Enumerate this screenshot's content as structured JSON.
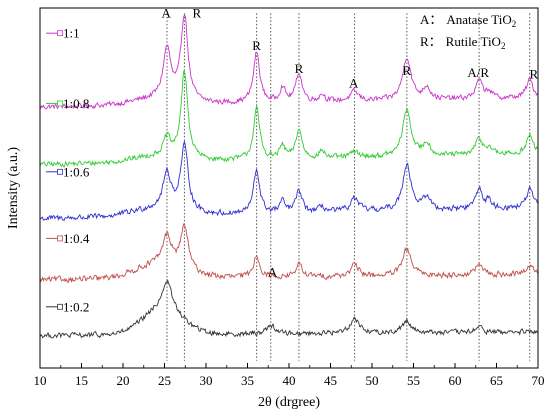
{
  "chart_data": {
    "type": "line",
    "title": "",
    "xlabel": "2θ (drgree)",
    "ylabel": "Intensity (a.u.)",
    "xlim": [
      10,
      70
    ],
    "x_ticks": [
      10,
      15,
      20,
      25,
      30,
      35,
      40,
      45,
      50,
      55,
      60,
      65,
      70
    ],
    "y_ticks_shown": false,
    "legend_position": "left",
    "phase_key": [
      {
        "symbol": "A：",
        "name": "Anatase TiO",
        "sub": "2"
      },
      {
        "symbol": "R：",
        "name": "Rutile TiO",
        "sub": "2"
      }
    ],
    "reference_lines": [
      {
        "x": 25.3,
        "phase": "A"
      },
      {
        "x": 27.4,
        "phase": "R"
      },
      {
        "x": 36.1,
        "phase": "R"
      },
      {
        "x": 37.8,
        "phase": "A"
      },
      {
        "x": 41.2,
        "phase": "R"
      },
      {
        "x": 47.9,
        "phase": "A"
      },
      {
        "x": 54.2,
        "phase": "R"
      },
      {
        "x": 62.9,
        "phase": "A/R"
      },
      {
        "x": 69.0,
        "phase": "R"
      }
    ],
    "peak_labels": [
      {
        "x": 25.2,
        "level": 0.985,
        "text": "A"
      },
      {
        "x": 28.9,
        "level": 0.985,
        "text": "R"
      },
      {
        "x": 36.1,
        "level": 0.895,
        "text": "R"
      },
      {
        "x": 41.2,
        "level": 0.83,
        "text": "R"
      },
      {
        "x": 47.8,
        "level": 0.79,
        "text": "A"
      },
      {
        "x": 54.2,
        "level": 0.825,
        "text": "R"
      },
      {
        "x": 62.8,
        "level": 0.82,
        "text": "A/R"
      },
      {
        "x": 69.5,
        "level": 0.815,
        "text": "R"
      },
      {
        "x": 38.0,
        "level": 0.265,
        "text": "A"
      }
    ],
    "series": [
      {
        "name": "1:1",
        "color": "#cc33cc",
        "baseline": 0.725,
        "tail_rise": 0.025,
        "hump": {
          "center": 24.0,
          "width": 4.0,
          "height": 0.015
        },
        "noise": 0.01,
        "label_level": 0.93,
        "peaks": [
          {
            "x": 25.3,
            "h": 0.14,
            "w": 0.55
          },
          {
            "x": 27.4,
            "h": 0.24,
            "w": 0.5
          },
          {
            "x": 36.1,
            "h": 0.14,
            "w": 0.45
          },
          {
            "x": 39.2,
            "h": 0.04,
            "w": 0.4
          },
          {
            "x": 41.2,
            "h": 0.08,
            "w": 0.45
          },
          {
            "x": 44.0,
            "h": 0.02,
            "w": 0.4
          },
          {
            "x": 47.9,
            "h": 0.025,
            "w": 0.6
          },
          {
            "x": 54.2,
            "h": 0.12,
            "w": 0.6
          },
          {
            "x": 56.6,
            "h": 0.035,
            "w": 0.5
          },
          {
            "x": 62.9,
            "h": 0.05,
            "w": 0.5
          },
          {
            "x": 64.1,
            "h": 0.02,
            "w": 0.4
          },
          {
            "x": 69.0,
            "h": 0.05,
            "w": 0.5
          }
        ]
      },
      {
        "name": "1:0.8",
        "color": "#33cc33",
        "baseline": 0.565,
        "tail_rise": 0.03,
        "hump": {
          "center": 24.0,
          "width": 4.0,
          "height": 0.015
        },
        "noise": 0.01,
        "label_level": 0.735,
        "peaks": [
          {
            "x": 25.3,
            "h": 0.05,
            "w": 0.5
          },
          {
            "x": 27.4,
            "h": 0.24,
            "w": 0.5
          },
          {
            "x": 36.1,
            "h": 0.14,
            "w": 0.45
          },
          {
            "x": 39.2,
            "h": 0.035,
            "w": 0.4
          },
          {
            "x": 41.2,
            "h": 0.08,
            "w": 0.45
          },
          {
            "x": 44.0,
            "h": 0.02,
            "w": 0.4
          },
          {
            "x": 47.9,
            "h": 0.015,
            "w": 0.6
          },
          {
            "x": 54.2,
            "h": 0.13,
            "w": 0.6
          },
          {
            "x": 56.6,
            "h": 0.035,
            "w": 0.5
          },
          {
            "x": 62.9,
            "h": 0.045,
            "w": 0.5
          },
          {
            "x": 64.1,
            "h": 0.02,
            "w": 0.4
          },
          {
            "x": 69.0,
            "h": 0.05,
            "w": 0.5
          }
        ]
      },
      {
        "name": "1:0.6",
        "color": "#2f2fd0",
        "baseline": 0.415,
        "tail_rise": 0.03,
        "hump": {
          "center": 24.0,
          "width": 4.0,
          "height": 0.02
        },
        "noise": 0.011,
        "label_level": 0.545,
        "peaks": [
          {
            "x": 25.3,
            "h": 0.1,
            "w": 0.55
          },
          {
            "x": 27.4,
            "h": 0.18,
            "w": 0.55
          },
          {
            "x": 36.1,
            "h": 0.12,
            "w": 0.45
          },
          {
            "x": 39.2,
            "h": 0.03,
            "w": 0.4
          },
          {
            "x": 41.2,
            "h": 0.06,
            "w": 0.45
          },
          {
            "x": 44.0,
            "h": 0.015,
            "w": 0.4
          },
          {
            "x": 47.9,
            "h": 0.035,
            "w": 0.6
          },
          {
            "x": 54.2,
            "h": 0.13,
            "w": 0.6
          },
          {
            "x": 56.6,
            "h": 0.035,
            "w": 0.5
          },
          {
            "x": 62.9,
            "h": 0.055,
            "w": 0.5
          },
          {
            "x": 64.1,
            "h": 0.02,
            "w": 0.4
          },
          {
            "x": 69.0,
            "h": 0.05,
            "w": 0.5
          }
        ]
      },
      {
        "name": "1:0.4",
        "color": "#c0504d",
        "baseline": 0.245,
        "tail_rise": 0.015,
        "hump": {
          "center": 24.5,
          "width": 4.0,
          "height": 0.04
        },
        "noise": 0.011,
        "label_level": 0.36,
        "peaks": [
          {
            "x": 25.3,
            "h": 0.08,
            "w": 0.6
          },
          {
            "x": 27.4,
            "h": 0.12,
            "w": 0.55
          },
          {
            "x": 36.1,
            "h": 0.06,
            "w": 0.45
          },
          {
            "x": 41.2,
            "h": 0.035,
            "w": 0.45
          },
          {
            "x": 47.9,
            "h": 0.03,
            "w": 0.6
          },
          {
            "x": 54.2,
            "h": 0.075,
            "w": 0.6
          },
          {
            "x": 62.9,
            "h": 0.03,
            "w": 0.5
          },
          {
            "x": 69.0,
            "h": 0.025,
            "w": 0.5
          }
        ]
      },
      {
        "name": "1:0.2",
        "color": "#333333",
        "baseline": 0.09,
        "tail_rise": 0.01,
        "hump": {
          "center": 24.8,
          "width": 3.3,
          "height": 0.07
        },
        "noise": 0.01,
        "label_level": 0.17,
        "peaks": [
          {
            "x": 25.3,
            "h": 0.08,
            "w": 0.7
          },
          {
            "x": 37.8,
            "h": 0.025,
            "w": 0.6
          },
          {
            "x": 47.9,
            "h": 0.04,
            "w": 0.7
          },
          {
            "x": 54.2,
            "h": 0.035,
            "w": 0.6
          },
          {
            "x": 62.9,
            "h": 0.015,
            "w": 0.5
          }
        ]
      }
    ]
  }
}
